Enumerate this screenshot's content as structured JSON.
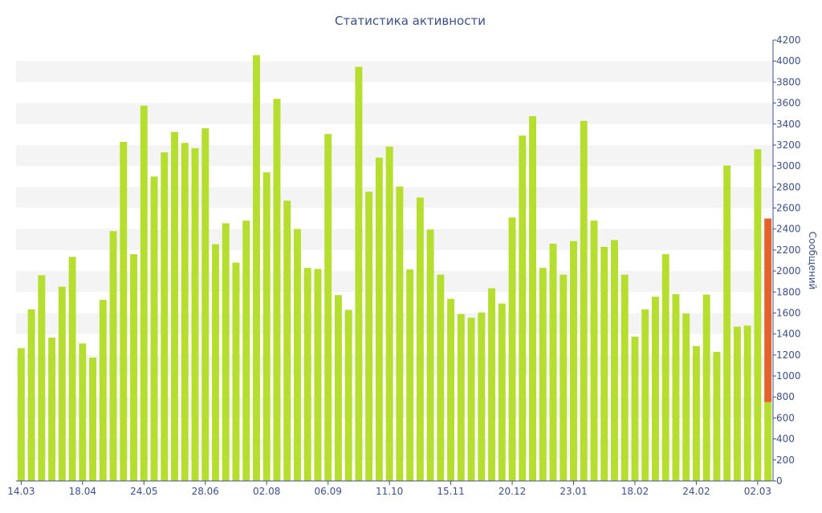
{
  "chart_data": {
    "type": "bar",
    "title": "Статистика активности",
    "ylabel": "Сообщений",
    "ylim": [
      0,
      4200
    ],
    "y_ticks": [
      0,
      200,
      400,
      600,
      800,
      1000,
      1200,
      1400,
      1600,
      1800,
      2000,
      2200,
      2400,
      2600,
      2800,
      3000,
      3200,
      3400,
      3600,
      3800,
      4000,
      4200
    ],
    "y_axis_side": "right",
    "grid": "alternating horizontal bands",
    "x_tick_labels": [
      {
        "index": 0,
        "label": "14.03"
      },
      {
        "index": 6,
        "label": "18.04"
      },
      {
        "index": 12,
        "label": "24.05"
      },
      {
        "index": 18,
        "label": "28.06"
      },
      {
        "index": 24,
        "label": "02.08"
      },
      {
        "index": 30,
        "label": "06.09"
      },
      {
        "index": 36,
        "label": "11.10"
      },
      {
        "index": 42,
        "label": "15.11"
      },
      {
        "index": 48,
        "label": "20.12"
      },
      {
        "index": 54,
        "label": "23.01"
      },
      {
        "index": 60,
        "label": "18.02"
      },
      {
        "index": 66,
        "label": "24.02"
      },
      {
        "index": 72,
        "label": "02.03"
      }
    ],
    "values": [
      1265,
      1635,
      1960,
      1365,
      1850,
      2135,
      1310,
      1175,
      1725,
      2380,
      3230,
      2160,
      3575,
      2900,
      3130,
      3325,
      3220,
      3170,
      3360,
      2255,
      2455,
      2080,
      2480,
      4055,
      2940,
      3640,
      2670,
      2400,
      2030,
      2020,
      3305,
      1770,
      1630,
      3945,
      2755,
      3080,
      3185,
      2805,
      2015,
      2700,
      2395,
      1965,
      1735,
      1590,
      1555,
      1605,
      1835,
      1690,
      2510,
      3290,
      3475,
      2030,
      2260,
      1965,
      2285,
      3430,
      2480,
      2230,
      2295,
      1965,
      1375,
      1635,
      1755,
      2160,
      1780,
      1595,
      1285,
      1775,
      1230,
      3005,
      1470,
      1480,
      3160
    ],
    "highlight": {
      "index": 73,
      "value": 2500,
      "base": 750
    },
    "colors": {
      "bar": "#b5de2e",
      "highlight": "#e2622e",
      "axis": "#3d4f8a",
      "band": "#f4f4f4"
    }
  }
}
